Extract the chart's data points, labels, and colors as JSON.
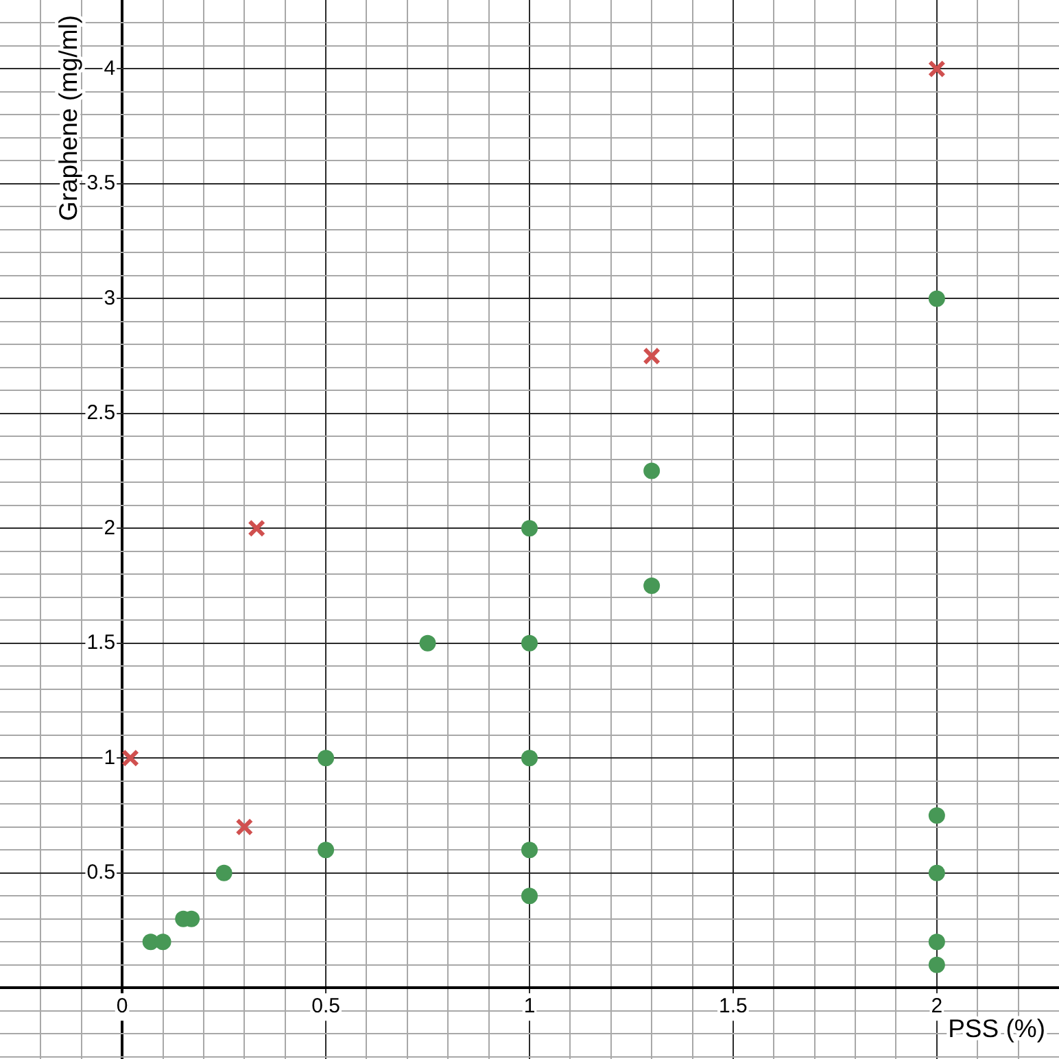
{
  "chart_data": {
    "type": "scatter",
    "xlabel": "PSS (%)",
    "ylabel": "Graphene (mg/ml)",
    "xlim": [
      -0.3,
      2.3
    ],
    "ylim": [
      -0.31,
      4.3
    ],
    "xticks": [
      {
        "value": -0.2,
        "label": null
      },
      {
        "value": -0.1,
        "label": null
      },
      0,
      {
        "value": 0.1,
        "label": null
      },
      {
        "value": 0.2,
        "label": null
      },
      {
        "value": 0.3,
        "label": null
      },
      {
        "value": 0.4,
        "label": null
      },
      0.5,
      {
        "value": 0.6,
        "label": null
      },
      {
        "value": 0.7,
        "label": null
      },
      {
        "value": 0.8,
        "label": null
      },
      {
        "value": 0.9,
        "label": null
      },
      1,
      {
        "value": 1.1,
        "label": null
      },
      {
        "value": 1.2,
        "label": null
      },
      {
        "value": 1.3,
        "label": null
      },
      {
        "value": 1.4,
        "label": null
      },
      1.5,
      {
        "value": 1.6,
        "label": null
      },
      {
        "value": 1.7,
        "label": null
      },
      {
        "value": 1.8,
        "label": null
      },
      {
        "value": 1.9,
        "label": null
      },
      2,
      {
        "value": 2.1,
        "label": null
      },
      {
        "value": 2.2,
        "label": null
      }
    ],
    "yticks": [
      {
        "value": -0.3,
        "label": null
      },
      {
        "value": -0.2,
        "label": null
      },
      {
        "value": -0.1,
        "label": null
      },
      {
        "value": 0.1,
        "label": null
      },
      {
        "value": 0.2,
        "label": null
      },
      {
        "value": 0.3,
        "label": null
      },
      {
        "value": 0.4,
        "label": null
      },
      0.5,
      {
        "value": 0.6,
        "label": null
      },
      {
        "value": 0.7,
        "label": null
      },
      {
        "value": 0.8,
        "label": null
      },
      {
        "value": 0.9,
        "label": null
      },
      1,
      {
        "value": 1.1,
        "label": null
      },
      {
        "value": 1.2,
        "label": null
      },
      {
        "value": 1.3,
        "label": null
      },
      {
        "value": 1.4,
        "label": null
      },
      1.5,
      {
        "value": 1.6,
        "label": null
      },
      {
        "value": 1.7,
        "label": null
      },
      {
        "value": 1.8,
        "label": null
      },
      {
        "value": 1.9,
        "label": null
      },
      2,
      {
        "value": 2.1,
        "label": null
      },
      {
        "value": 2.2,
        "label": null
      },
      {
        "value": 2.3,
        "label": null
      },
      {
        "value": 2.4,
        "label": null
      },
      2.5,
      {
        "value": 2.6,
        "label": null
      },
      {
        "value": 2.7,
        "label": null
      },
      {
        "value": 2.8,
        "label": null
      },
      {
        "value": 2.9,
        "label": null
      },
      3,
      {
        "value": 3.1,
        "label": null
      },
      {
        "value": 3.2,
        "label": null
      },
      {
        "value": 3.3,
        "label": null
      },
      {
        "value": 3.4,
        "label": null
      },
      3.5,
      {
        "value": 3.6,
        "label": null
      },
      {
        "value": 3.7,
        "label": null
      },
      {
        "value": 3.8,
        "label": null
      },
      {
        "value": 3.9,
        "label": null
      },
      4,
      {
        "value": 4.1,
        "label": null
      },
      {
        "value": 4.2,
        "label": null
      }
    ],
    "grid": true,
    "series": [
      {
        "color": "#479856",
        "marker": "circle",
        "x": [
          0.07,
          0.1,
          0.15,
          0.17,
          0.25,
          0.5,
          0.5,
          0.75,
          1,
          1,
          1,
          1,
          1,
          1.3,
          1.3,
          2,
          2,
          2,
          2,
          2
        ],
        "values": [
          0.2,
          0.2,
          0.3,
          0.3,
          0.5,
          1,
          0.6,
          1.5,
          2,
          1.5,
          1,
          0.6,
          0.4,
          2.25,
          1.75,
          3,
          0.75,
          0.5,
          0.2,
          0.1
        ]
      },
      {
        "color": "#d0504f",
        "marker": "cross",
        "x": [
          0.02,
          0.3,
          0.33,
          1.3,
          2
        ],
        "values": [
          1,
          0.7,
          2,
          2.75,
          4
        ]
      }
    ]
  }
}
